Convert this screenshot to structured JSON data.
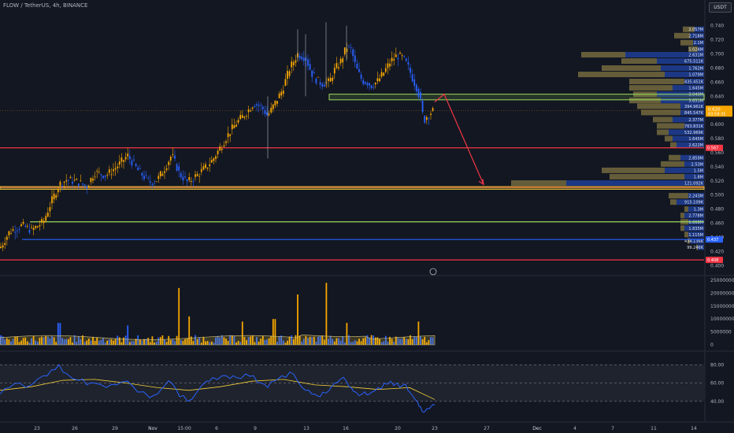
{
  "header": {
    "symbol_line": "FLOW / TetherUS, 4h, BINANCE",
    "currency": "USDT"
  },
  "colors": {
    "background": "#131722",
    "bull": "#f7a600",
    "bear": "#2962ff",
    "red_level": "#f23645",
    "green_level": "#9cdb5c",
    "yellow_level": "#f2d03b",
    "blue_level": "#2962ff",
    "arrow": "#f23645",
    "rsi_line": "#2962ff",
    "rsi_ma": "#f2d03b"
  },
  "chart_data": [
    {
      "type": "candlestick",
      "symbol": "FLOW / TetherUS",
      "interval": "4h",
      "exchange": "BINANCE",
      "y_ticks": [
        "0.740",
        "0.720",
        "0.700",
        "0.680",
        "0.660",
        "0.640",
        "0.620",
        "0.600",
        "0.580",
        "0.560",
        "0.540",
        "0.520",
        "0.500",
        "0.480",
        "0.460",
        "0.440",
        "0.420",
        "0.400"
      ],
      "ylim": [
        0.397,
        0.752
      ],
      "x_ticks": [
        "23",
        "26",
        "29",
        "Nov",
        "15:00",
        "6",
        "9",
        "13",
        "16",
        "20",
        "23",
        "27",
        "Dec",
        "4",
        "7",
        "11",
        "14"
      ],
      "last_price": {
        "value": "0.620",
        "countdown": "03:59:35"
      },
      "price_path": [
        [
          0,
          0.425
        ],
        [
          12,
          0.448
        ],
        [
          28,
          0.457
        ],
        [
          40,
          0.45
        ],
        [
          55,
          0.462
        ],
        [
          65,
          0.49
        ],
        [
          75,
          0.515
        ],
        [
          85,
          0.522
        ],
        [
          100,
          0.518
        ],
        [
          110,
          0.512
        ],
        [
          120,
          0.532
        ],
        [
          135,
          0.528
        ],
        [
          148,
          0.54
        ],
        [
          162,
          0.556
        ],
        [
          175,
          0.535
        ],
        [
          190,
          0.518
        ],
        [
          200,
          0.522
        ],
        [
          210,
          0.54
        ],
        [
          218,
          0.557
        ],
        [
          228,
          0.53
        ],
        [
          238,
          0.518
        ],
        [
          250,
          0.528
        ],
        [
          262,
          0.54
        ],
        [
          270,
          0.55
        ],
        [
          282,
          0.572
        ],
        [
          292,
          0.59
        ],
        [
          300,
          0.602
        ],
        [
          312,
          0.616
        ],
        [
          322,
          0.63
        ],
        [
          332,
          0.625
        ],
        [
          340,
          0.612
        ],
        [
          348,
          0.628
        ],
        [
          358,
          0.648
        ],
        [
          368,
          0.68
        ],
        [
          378,
          0.7
        ],
        [
          388,
          0.695
        ],
        [
          396,
          0.672
        ],
        [
          403,
          0.662
        ],
        [
          410,
          0.658
        ],
        [
          418,
          0.66
        ],
        [
          425,
          0.678
        ],
        [
          432,
          0.688
        ],
        [
          440,
          0.71
        ],
        [
          446,
          0.706
        ],
        [
          452,
          0.68
        ],
        [
          460,
          0.662
        ],
        [
          466,
          0.66
        ],
        [
          472,
          0.655
        ],
        [
          480,
          0.662
        ],
        [
          488,
          0.675
        ],
        [
          496,
          0.69
        ],
        [
          504,
          0.698
        ],
        [
          512,
          0.694
        ],
        [
          518,
          0.682
        ],
        [
          524,
          0.665
        ],
        [
          530,
          0.65
        ],
        [
          534,
          0.632
        ],
        [
          538,
          0.605
        ],
        [
          542,
          0.612
        ],
        [
          548,
          0.618
        ],
        [
          552,
          0.62
        ]
      ],
      "levels": [
        {
          "kind": "green_band",
          "price_from": 0.643,
          "price_to": 0.635
        },
        {
          "kind": "red_line",
          "price": 0.567,
          "label": "0.567"
        },
        {
          "kind": "red_line",
          "price": 0.511
        },
        {
          "kind": "yellow_band",
          "price_from": 0.512,
          "price_to": 0.508
        },
        {
          "kind": "green_line",
          "price": 0.462
        },
        {
          "kind": "blue_line",
          "price": 0.437,
          "label": "0.437"
        },
        {
          "kind": "red_line",
          "price": 0.408,
          "label": "0.408"
        }
      ],
      "projection": [
        [
          552,
          0.632
        ],
        [
          564,
          0.643
        ],
        [
          614,
          0.515
        ]
      ],
      "volume_profile": [
        {
          "label": "2.057M",
          "price": 0.735,
          "bull": 15,
          "bear": 12
        },
        {
          "label": "2.718M",
          "price": 0.726,
          "bull": 20,
          "bear": 18
        },
        {
          "label": "2.1M",
          "price": 0.716,
          "bull": 16,
          "bear": 14
        },
        {
          "label": "1.024M",
          "price": 0.707,
          "bull": 12,
          "bear": 8
        },
        {
          "label": "2.631M",
          "price": 0.699,
          "bull": 56,
          "bear": 100
        },
        {
          "label": "675.511K",
          "price": 0.69,
          "bull": 45,
          "bear": 60
        },
        {
          "label": "1.762M",
          "price": 0.68,
          "bull": 75,
          "bear": 55
        },
        {
          "label": "1.079M",
          "price": 0.671,
          "bull": 110,
          "bear": 50
        },
        {
          "label": "435.451K",
          "price": 0.661,
          "bull": 70,
          "bear": 25
        },
        {
          "label": "1.645M",
          "price": 0.652,
          "bull": 55,
          "bear": 40
        },
        {
          "label": "3.049M",
          "price": 0.643,
          "bull": 30,
          "bear": 60
        },
        {
          "label": "3.651M",
          "price": 0.634,
          "bull": 40,
          "bear": 55
        },
        {
          "label": "394.961K",
          "price": 0.626,
          "bull": 55,
          "bear": 30
        },
        {
          "label": "845.547K",
          "price": 0.617,
          "bull": 50,
          "bear": 30
        },
        {
          "label": "2.377M",
          "price": 0.607,
          "bull": 25,
          "bear": 40
        },
        {
          "label": "763.831K",
          "price": 0.598,
          "bull": 35,
          "bear": 25
        },
        {
          "label": "532.969K",
          "price": 0.589,
          "bull": 15,
          "bear": 45
        },
        {
          "label": "1.645M",
          "price": 0.58,
          "bull": 10,
          "bear": 40
        },
        {
          "label": "2.622M",
          "price": 0.571,
          "bull": 8,
          "bear": 35
        },
        {
          "label": "2.859M",
          "price": 0.553,
          "bull": 15,
          "bear": 30
        },
        {
          "label": "2.53M",
          "price": 0.544,
          "bull": 30,
          "bear": 25
        },
        {
          "label": "1.5M",
          "price": 0.535,
          "bull": 80,
          "bear": 50
        },
        {
          "label": "1.8M",
          "price": 0.526,
          "bull": 95,
          "bear": 25
        },
        {
          "label": "121.092K",
          "price": 0.517,
          "bull": 70,
          "bear": 175
        },
        {
          "label": "2.243M",
          "price": 0.499,
          "bull": 25,
          "bear": 20
        },
        {
          "label": "915.109K",
          "price": 0.49,
          "bull": 8,
          "bear": 35
        },
        {
          "label": "1.3M",
          "price": 0.48,
          "bull": 5,
          "bear": 20
        },
        {
          "label": "2.778M",
          "price": 0.471,
          "bull": 5,
          "bear": 25
        },
        {
          "label": "1.668M",
          "price": 0.462,
          "bull": 10,
          "bear": 20
        },
        {
          "label": "1.835M",
          "price": 0.453,
          "bull": 5,
          "bear": 25
        },
        {
          "label": "1.115M",
          "price": 0.444,
          "bull": 5,
          "bear": 20
        },
        {
          "label": "434.136K",
          "price": 0.435,
          "bull": 3,
          "bear": 18
        },
        {
          "label": "99.246K",
          "price": 0.426,
          "bull": 2,
          "bear": 8
        }
      ]
    },
    {
      "type": "bar",
      "name": "Volume",
      "y_ticks": [
        "25000000",
        "20000000",
        "15000000",
        "10000000",
        "5000000",
        "0"
      ],
      "ylim": [
        0,
        25000000
      ],
      "spikes": [
        {
          "x": 75,
          "value": 8500000
        },
        {
          "x": 162,
          "value": 7500000
        },
        {
          "x": 228,
          "value": 22000000
        },
        {
          "x": 240,
          "value": 11000000
        },
        {
          "x": 308,
          "value": 9000000
        },
        {
          "x": 348,
          "value": 10000000
        },
        {
          "x": 378,
          "value": 19500000
        },
        {
          "x": 414,
          "value": 24000000
        },
        {
          "x": 440,
          "value": 8500000
        },
        {
          "x": 532,
          "value": 9000000
        }
      ]
    },
    {
      "type": "line",
      "name": "RSI",
      "y_ticks": [
        "80.00",
        "60.00",
        "40.00"
      ],
      "ylim": [
        20,
        88
      ],
      "bands": [
        80,
        60,
        40
      ],
      "points": [
        [
          0,
          48
        ],
        [
          12,
          55
        ],
        [
          25,
          60
        ],
        [
          40,
          58
        ],
        [
          55,
          68
        ],
        [
          65,
          74
        ],
        [
          75,
          80
        ],
        [
          85,
          70
        ],
        [
          100,
          63
        ],
        [
          110,
          58
        ],
        [
          120,
          60
        ],
        [
          135,
          55
        ],
        [
          148,
          58
        ],
        [
          162,
          62
        ],
        [
          175,
          50
        ],
        [
          190,
          44
        ],
        [
          200,
          48
        ],
        [
          210,
          58
        ],
        [
          218,
          60
        ],
        [
          228,
          45
        ],
        [
          238,
          40
        ],
        [
          250,
          50
        ],
        [
          262,
          62
        ],
        [
          270,
          66
        ],
        [
          282,
          68
        ],
        [
          292,
          65
        ],
        [
          300,
          66
        ],
        [
          312,
          70
        ],
        [
          322,
          68
        ],
        [
          332,
          60
        ],
        [
          340,
          55
        ],
        [
          348,
          62
        ],
        [
          358,
          68
        ],
        [
          368,
          72
        ],
        [
          378,
          62
        ],
        [
          388,
          52
        ],
        [
          396,
          48
        ],
        [
          403,
          46
        ],
        [
          410,
          50
        ],
        [
          418,
          52
        ],
        [
          425,
          60
        ],
        [
          432,
          64
        ],
        [
          440,
          62
        ],
        [
          446,
          55
        ],
        [
          452,
          50
        ],
        [
          460,
          48
        ],
        [
          466,
          47
        ],
        [
          472,
          50
        ],
        [
          480,
          55
        ],
        [
          488,
          60
        ],
        [
          496,
          62
        ],
        [
          504,
          60
        ],
        [
          512,
          58
        ],
        [
          518,
          52
        ],
        [
          524,
          46
        ],
        [
          530,
          40
        ],
        [
          534,
          34
        ],
        [
          538,
          28
        ],
        [
          542,
          32
        ],
        [
          548,
          35
        ],
        [
          552,
          36
        ]
      ],
      "ma_points": [
        [
          0,
          52
        ],
        [
          40,
          56
        ],
        [
          80,
          63
        ],
        [
          120,
          64
        ],
        [
          160,
          60
        ],
        [
          200,
          55
        ],
        [
          240,
          52
        ],
        [
          280,
          56
        ],
        [
          320,
          62
        ],
        [
          360,
          64
        ],
        [
          400,
          58
        ],
        [
          440,
          56
        ],
        [
          480,
          53
        ],
        [
          520,
          55
        ],
        [
          552,
          42
        ]
      ]
    }
  ]
}
